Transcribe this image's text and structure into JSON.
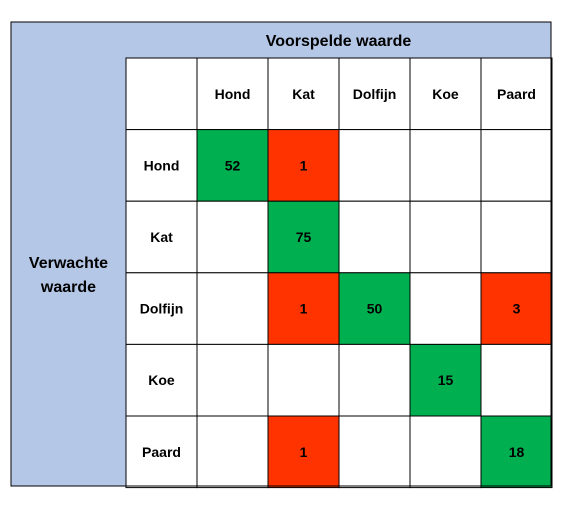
{
  "chart_data": {
    "type": "table",
    "column_header": "Voorspelde waarde",
    "row_header_lines": [
      "Verwachte",
      "waarde"
    ],
    "columns": [
      "Hond",
      "Kat",
      "Dolfijn",
      "Koe",
      "Paard"
    ],
    "rows": [
      "Hond",
      "Kat",
      "Dolfijn",
      "Koe",
      "Paard"
    ],
    "values": [
      [
        52,
        1,
        null,
        null,
        null
      ],
      [
        null,
        75,
        null,
        null,
        null
      ],
      [
        null,
        1,
        50,
        null,
        3
      ],
      [
        null,
        null,
        null,
        15,
        null
      ],
      [
        null,
        1,
        null,
        null,
        18
      ]
    ]
  },
  "colors": {
    "header_fill": "#b4c7e7",
    "correct": "#00b050",
    "error": "#ff3300",
    "empty": "#ffffff",
    "grid": "#000000"
  }
}
